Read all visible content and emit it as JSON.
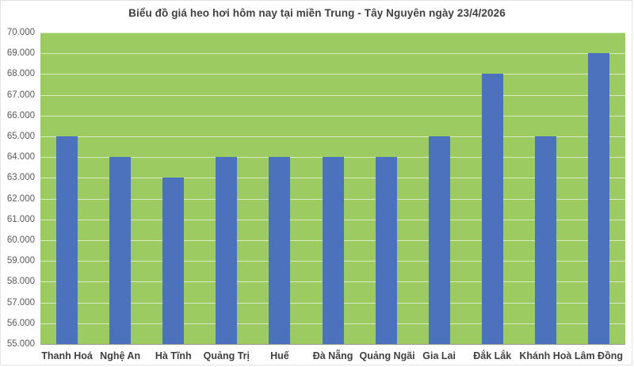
{
  "chart_data": {
    "type": "bar",
    "title": "Biểu đồ giá heo hơi hôm nay tại miền Trung - Tây Nguyên ngày 23/4/2026",
    "categories": [
      "Thanh Hoá",
      "Nghệ An",
      "Hà Tĩnh",
      "Quảng Trị",
      "Huế",
      "Đà Nẵng",
      "Quảng Ngãi",
      "Gia Lai",
      "Đắk Lắk",
      "Khánh Hoà",
      "Lâm Đồng"
    ],
    "values": [
      65000,
      64000,
      63000,
      64000,
      64000,
      64000,
      64000,
      65000,
      68000,
      65000,
      69000
    ],
    "xlabel": "",
    "ylabel": "",
    "ylim": [
      55000,
      70000
    ],
    "ytick_step": 1000,
    "ytick_labels": [
      "55.000",
      "56.000",
      "57.000",
      "58.000",
      "59.000",
      "60.000",
      "61.000",
      "62.000",
      "63.000",
      "64.000",
      "65.000",
      "66.000",
      "67.000",
      "68.000",
      "69.000",
      "70.000"
    ],
    "grid": "horizontal-white-gridlines",
    "legend": "none",
    "colors": {
      "bar": "#4C72BE",
      "plot_background": "#9CCB62",
      "gridline": "rgba(255,255,255,0.6)",
      "axis_line": "#9a9a9a",
      "title_text": "#404040",
      "tick_text": "#595959",
      "category_text": "#404040",
      "page_background": "#FFFFFF",
      "frame_border": "#E3E3E3"
    }
  }
}
